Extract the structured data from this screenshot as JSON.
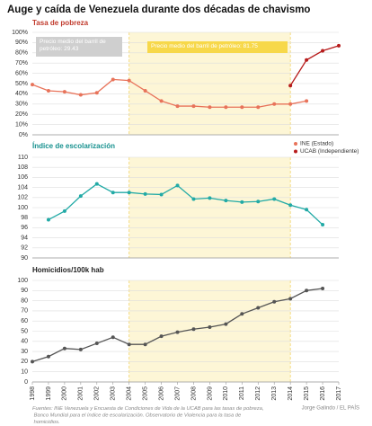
{
  "title": "Auge y caída de Venezuela durante dos décadas de chavismo",
  "source": "Fuentes: INE Venezuela y Encuesta de Condiciones de Vida de la UCAB para las tasas de pobreza, Banco Mundial para el índice de escolarización. Observatorio de Violencia para la tasa de homicidios.",
  "credit": "Jorge Galindo / EL PAÍS",
  "chart_data": [
    {
      "type": "line",
      "title": "Tasa de pobreza",
      "title_color": "#c0392b",
      "x": [
        1998,
        1999,
        2000,
        2001,
        2002,
        2003,
        2004,
        2005,
        2006,
        2007,
        2008,
        2009,
        2010,
        2011,
        2012,
        2013,
        2014,
        2015,
        2016,
        2017
      ],
      "xlim": [
        1998,
        2017
      ],
      "shade": {
        "from": 2004,
        "to": 2014,
        "color": "#fdf6d6",
        "edge": "#f2d46a"
      },
      "series": [
        {
          "name": "INE (Estado)",
          "color": "#e8735a",
          "values": [
            49,
            43,
            42,
            39,
            41,
            54,
            53,
            43,
            33,
            28,
            28,
            27,
            27,
            27,
            27,
            30,
            30,
            33,
            null,
            null
          ]
        },
        {
          "name": "UCAB (Independiente)",
          "color": "#b71c1c",
          "values": [
            null,
            null,
            null,
            null,
            null,
            null,
            null,
            null,
            null,
            null,
            null,
            null,
            null,
            null,
            null,
            null,
            48,
            73,
            82,
            87
          ]
        }
      ],
      "ylim": [
        0,
        100
      ],
      "yticks": [
        {
          "value": 0,
          "label": "0%"
        },
        {
          "value": 10,
          "label": "10%"
        },
        {
          "value": 20,
          "label": "20%"
        },
        {
          "value": 30,
          "label": "30%"
        },
        {
          "value": 40,
          "label": "40%"
        },
        {
          "value": 50,
          "label": "50%"
        },
        {
          "value": 60,
          "label": "60%"
        },
        {
          "value": 70,
          "label": "70%"
        },
        {
          "value": 80,
          "label": "80%"
        },
        {
          "value": 90,
          "label": "90%"
        },
        {
          "value": 100,
          "label": "100%"
        }
      ],
      "grid": true,
      "annotations": [
        {
          "text": "Precio medio del barril de petróleo: 29.43",
          "color": "#cfcfcf"
        },
        {
          "text": "Precio medio del barril de petróleo: 81.75",
          "color": "#f7d84a"
        }
      ]
    },
    {
      "type": "line",
      "title": "Índice de escolarización",
      "title_color": "#17918f",
      "x": [
        1998,
        1999,
        2000,
        2001,
        2002,
        2003,
        2004,
        2005,
        2006,
        2007,
        2008,
        2009,
        2010,
        2011,
        2012,
        2013,
        2014,
        2015,
        2016,
        2017
      ],
      "xlim": [
        1998,
        2017
      ],
      "shade": {
        "from": 2004,
        "to": 2014,
        "color": "#fdf6d6",
        "edge": "#f2d46a"
      },
      "series": [
        {
          "color": "#22aaa6",
          "values": [
            null,
            97.6,
            99.3,
            102.3,
            104.7,
            103,
            103,
            102.7,
            102.6,
            104.4,
            101.7,
            101.9,
            101.4,
            101.1,
            101.2,
            101.7,
            100.5,
            99.6,
            96.6,
            null
          ]
        }
      ],
      "ylim": [
        90,
        110
      ],
      "yticks": [
        90,
        92,
        94,
        96,
        98,
        100,
        102,
        104,
        106,
        108,
        110
      ],
      "grid": true
    },
    {
      "type": "line",
      "title": "Homicidios/100k hab",
      "title_color": "#222",
      "x": [
        1998,
        1999,
        2000,
        2001,
        2002,
        2003,
        2004,
        2005,
        2006,
        2007,
        2008,
        2009,
        2010,
        2011,
        2012,
        2013,
        2014,
        2015,
        2016,
        2017
      ],
      "xlim": [
        1998,
        2017
      ],
      "xticks": [
        1998,
        1999,
        2000,
        2001,
        2002,
        2003,
        2004,
        2005,
        2006,
        2007,
        2008,
        2009,
        2010,
        2011,
        2012,
        2013,
        2014,
        2015,
        2016,
        2017
      ],
      "shade": {
        "from": 2004,
        "to": 2014,
        "color": "#fdf6d6",
        "edge": "#f2d46a"
      },
      "series": [
        {
          "color": "#555555",
          "values": [
            20,
            25,
            33,
            32,
            38,
            44,
            37,
            37,
            45,
            49,
            52,
            54,
            57,
            67,
            73,
            79,
            82,
            90,
            92,
            null
          ]
        }
      ],
      "ylim": [
        0,
        100
      ],
      "yticks": [
        0,
        10,
        20,
        30,
        40,
        50,
        60,
        70,
        80,
        90,
        100
      ],
      "grid": true
    }
  ]
}
